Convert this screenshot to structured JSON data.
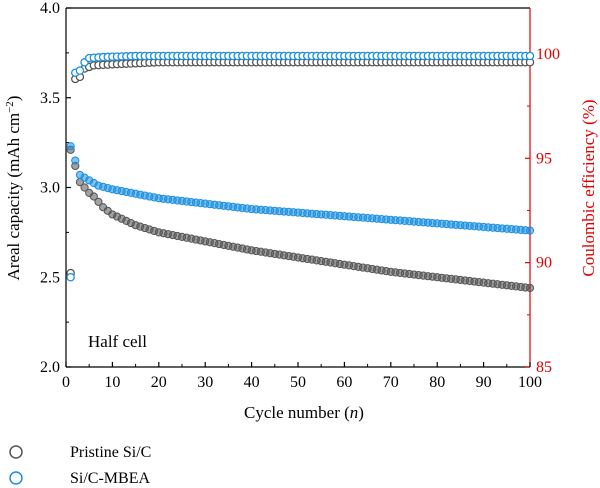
{
  "chart_data": {
    "type": "scatter",
    "xlabel_main": "Cycle number (",
    "xlabel_var": "n",
    "xlabel_end": ")",
    "ylabel_left": "Areal capacity (mAh cm",
    "ylabel_left_sup": "−2",
    "ylabel_left_end": ")",
    "ylabel_right": "Coulombic efficiency (%)",
    "annotation": "Half cell",
    "x_range": [
      0,
      100
    ],
    "y_left_range": [
      2.0,
      4.0
    ],
    "y_right_range": [
      85,
      102.2
    ],
    "x_ticks": [
      0,
      10,
      20,
      30,
      40,
      50,
      60,
      70,
      80,
      90,
      100
    ],
    "y_left_ticks": [
      "2.0",
      "2.5",
      "3.0",
      "3.5",
      "4.0"
    ],
    "y_right_ticks": [
      85,
      90,
      95,
      100
    ],
    "grid": false,
    "legend_position": "below-left",
    "colors": {
      "pristine": "#555555",
      "mbea": "#1a8fe0",
      "right_axis": "#e00000"
    },
    "series": [
      {
        "name": "Pristine Si/C",
        "key": "pristine",
        "capacity": {
          "start": 3.21,
          "drop": [
            [
              2,
              3.12
            ],
            [
              3,
              3.03
            ],
            [
              4,
              3.0
            ],
            [
              5,
              2.97
            ],
            [
              6,
              2.95
            ],
            [
              7,
              2.92
            ],
            [
              8,
              2.89
            ],
            [
              10,
              2.85
            ],
            [
              15,
              2.79
            ],
            [
              20,
              2.75
            ],
            [
              30,
              2.7
            ],
            [
              40,
              2.65
            ],
            [
              50,
              2.61
            ],
            [
              60,
              2.57
            ],
            [
              70,
              2.53
            ],
            [
              80,
              2.5
            ],
            [
              90,
              2.47
            ],
            [
              100,
              2.44
            ]
          ]
        },
        "efficiency": {
          "first": 89.5,
          "points": [
            [
              2,
              98.8
            ],
            [
              3,
              98.9
            ],
            [
              4,
              99.3
            ],
            [
              6,
              99.45
            ],
            [
              10,
              99.5
            ],
            [
              20,
              99.6
            ],
            [
              100,
              99.6
            ]
          ]
        }
      },
      {
        "name": "Si/C-MBEA",
        "key": "mbea",
        "capacity": {
          "start": 3.23,
          "drop": [
            [
              2,
              3.15
            ],
            [
              3,
              3.07
            ],
            [
              5,
              3.04
            ],
            [
              7,
              3.01
            ],
            [
              10,
              2.99
            ],
            [
              20,
              2.94
            ],
            [
              40,
              2.88
            ],
            [
              60,
              2.84
            ],
            [
              80,
              2.8
            ],
            [
              100,
              2.76
            ]
          ]
        },
        "efficiency": {
          "first": 89.3,
          "points": [
            [
              2,
              99.1
            ],
            [
              3,
              99.2
            ],
            [
              4,
              99.6
            ],
            [
              5,
              99.8
            ],
            [
              8,
              99.85
            ],
            [
              15,
              99.9
            ],
            [
              100,
              99.9
            ]
          ]
        }
      }
    ]
  }
}
